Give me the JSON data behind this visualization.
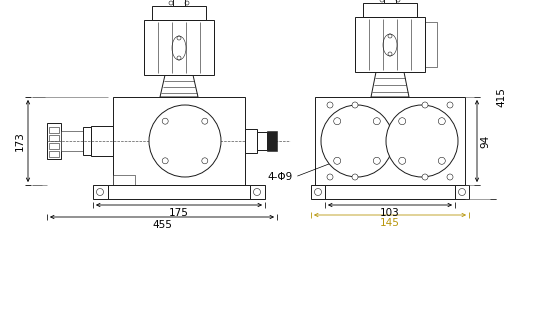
{
  "bg_color": "#ffffff",
  "line_color": "#1a1a1a",
  "dim_color": "#000000",
  "dim_color_gold": "#b8960c",
  "font_size_dim": 7.5,
  "lw_main": 0.7,
  "lw_thin": 0.4,
  "lw_thick": 1.0,
  "dims": {
    "left_width": "455",
    "left_base_width": "175",
    "left_height": "173",
    "right_width": "145",
    "right_base_width": "103",
    "right_height": "415",
    "right_bolt_height": "94",
    "bolt_label": "4-Φ9"
  }
}
